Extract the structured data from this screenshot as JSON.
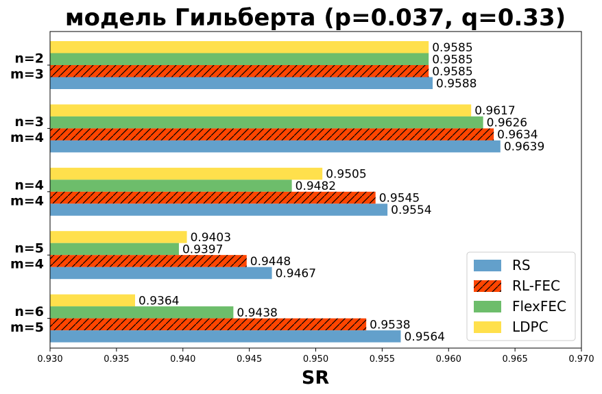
{
  "chart_data": {
    "type": "bar",
    "orientation": "horizontal",
    "title": "модель Гильберта (p=0.037, q=0.33)",
    "xlabel": "SR",
    "ylabel": "",
    "xlim": [
      0.93,
      0.97
    ],
    "xticks": [
      "0.930",
      "0.935",
      "0.940",
      "0.945",
      "0.950",
      "0.955",
      "0.960",
      "0.965",
      "0.970"
    ],
    "categories": [
      [
        "n=2",
        "m=3"
      ],
      [
        "n=3",
        "m=4"
      ],
      [
        "n=4",
        "m=4"
      ],
      [
        "n=5",
        "m=4"
      ],
      [
        "n=6",
        "m=5"
      ]
    ],
    "series": [
      {
        "name": "RS",
        "color": "#63a0cb",
        "hatch": false,
        "values": [
          0.9588,
          0.9639,
          0.9554,
          0.9467,
          0.9564
        ]
      },
      {
        "name": "RL-FEC",
        "color": "#ff4500",
        "hatch": true,
        "values": [
          0.9585,
          0.9634,
          0.9545,
          0.9448,
          0.9538
        ]
      },
      {
        "name": "FlexFEC",
        "color": "#6dbd6b",
        "hatch": false,
        "values": [
          0.9585,
          0.9626,
          0.9482,
          0.9397,
          0.9438
        ]
      },
      {
        "name": "LDPC",
        "color": "#ffe04c",
        "hatch": false,
        "values": [
          0.9585,
          0.9617,
          0.9505,
          0.9403,
          0.9364
        ]
      }
    ],
    "data_labels": [
      [
        "0.9588",
        "0.9639",
        "0.9554",
        "0.9467",
        "0.9564"
      ],
      [
        "0.9585",
        "0.9634",
        "0.9545",
        "0.9448",
        "0.9538"
      ],
      [
        "0.9585",
        "0.9626",
        "0.9482",
        "0.9397",
        "0.9438"
      ],
      [
        "0.9585",
        "0.9617",
        "0.9505",
        "0.9403",
        "0.9364"
      ]
    ],
    "legend": {
      "position": "bottom-right",
      "entries": [
        "RS",
        "RL-FEC",
        "FlexFEC",
        "LDPC"
      ]
    },
    "grid": false
  }
}
